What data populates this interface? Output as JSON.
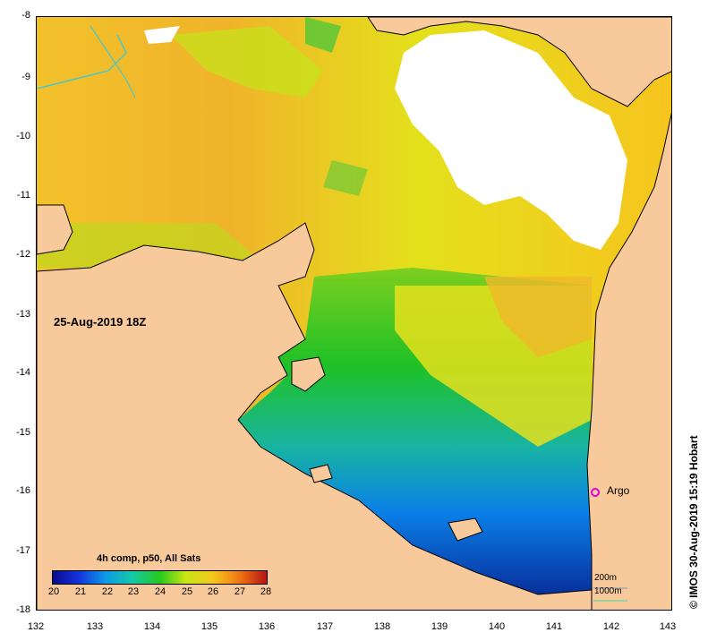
{
  "map": {
    "date_label": "25-Aug-2019 18Z",
    "colorbar_title": "4h comp, p50, All Sats",
    "colorbar_ticks": [
      "20",
      "21",
      "22",
      "23",
      "24",
      "25",
      "26",
      "27",
      "28"
    ],
    "argo_label": "Argo",
    "scale_200": "200m",
    "scale_1000": "1000m",
    "copyright": "© IMOS 30-Aug-2019 15:19 Hobart",
    "x_ticks": [
      "132",
      "133",
      "134",
      "135",
      "136",
      "137",
      "138",
      "139",
      "140",
      "141",
      "142",
      "143"
    ],
    "y_ticks": [
      "-8",
      "-9",
      "-10",
      "-11",
      "-12",
      "-13",
      "-14",
      "-15",
      "-16",
      "-17",
      "-18"
    ],
    "lon_range": [
      132,
      143
    ],
    "lat_range": [
      -18,
      -8
    ],
    "colors": {
      "land": "#f7c99b",
      "no_data": "#ffffff",
      "argo": "#e000e0",
      "scale_200": "#aaaaaa",
      "scale_1000": "#7fd6a0"
    }
  }
}
